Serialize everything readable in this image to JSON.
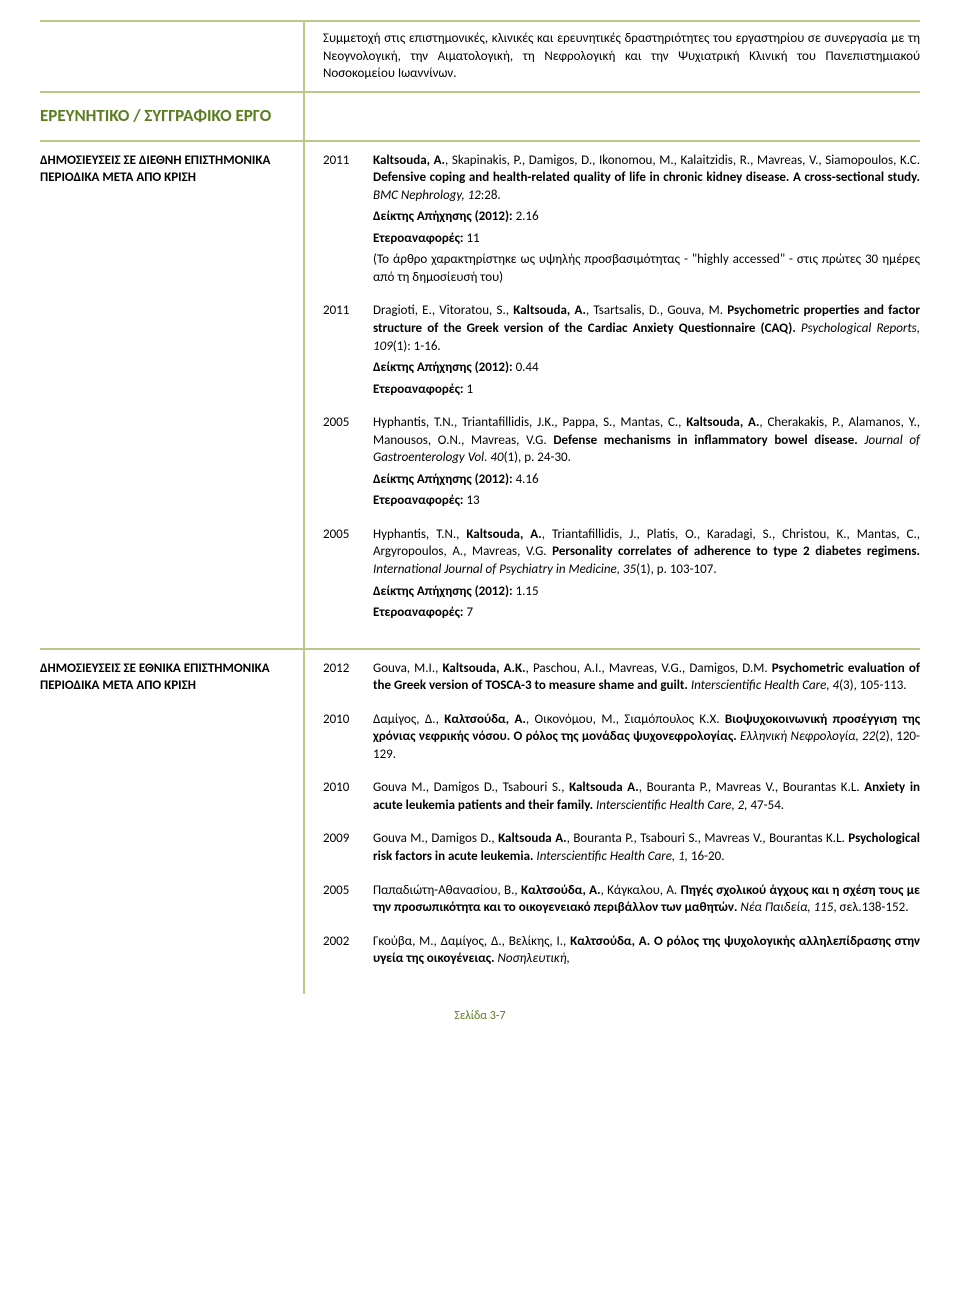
{
  "colors": {
    "accent_green": "#5b7c1f",
    "border_green": "#b8c98a",
    "text": "#000000",
    "background": "#ffffff"
  },
  "typography": {
    "body_font": "Calibri",
    "body_size_pt": 10,
    "section_title_size_pt": 13,
    "section_title_weight": "bold"
  },
  "intro_paragraph": "Συμμετοχή στις επιστημονικές, κλινικές και ερευνητικές δραστηριότητες του εργαστηρίου σε συνεργασία με τη Νεογνολογική, την Αιματολογική, τη Νεφρολογική και την Ψυχιατρική Κλινική του Πανεπιστημιακού Νοσοκομείου Ιωαννίνων.",
  "section_title": "ΕΡΕΥΝΗΤΙΚΟ / ΣΥΓΓΡΑΦΙΚΟ ΕΡΓΟ",
  "intl_pubs": {
    "heading": "ΔΗΜΟΣΙΕΥΣΕΙΣ ΣΕ ΔΙΕΘΝΗ ΕΠΙΣΤΗΜΟΝΙΚΑ ΠΕΡΙΟΔΙΚΑ ΜΕΤΑ ΑΠΟ ΚΡΙΣΗ",
    "entries": [
      {
        "year": "2011",
        "pre": "Kaltsouda, A.",
        "authors_rest": ", Skapinakis, P., Damigos, D., Ikonomou, M., Kalaitzidis, R., Mavreas, V., Siamopoulos, K.C. ",
        "title_bold": "Defensive coping and health-related quality of life in chronic kidney disease. A cross-sectional study. ",
        "journal_italic": "BMC Nephrology, 12",
        "tail": ":28.",
        "impact_label": "Δείκτης Απήχησης (2012): ",
        "impact_val": "2.16",
        "refs_label": "Ετεροαναφορές: ",
        "refs_val": "11",
        "note": "(Το άρθρο χαρακτηρίστηκε ως υψηλής προσβασιμότητας - \"highly accessed\" - στις πρώτες 30 ημέρες από τη δημοσίευσή του)"
      },
      {
        "year": "2011",
        "pre": "Dragioti, E., Vitoratou, S., ",
        "name_bold": "Kaltsouda, A.",
        "authors_rest": ", Tsartsalis, D., Gouva, M. ",
        "title_bold": "Psychometric properties and factor structure of the Greek version of the Cardiac Anxiety Questionnaire (CAQ). ",
        "journal_italic": "Psychological Reports, 109",
        "tail": "(1): 1-16.",
        "impact_label": "Δείκτης Απήχησης (2012): ",
        "impact_val": "0.44",
        "refs_label": "Ετεροαναφορές: ",
        "refs_val": "1"
      },
      {
        "year": "2005",
        "pre": "Hyphantis, T.N., Triantafillidis, J.K., Pappa, S., Mantas, C., ",
        "name_bold": "Kaltsouda, A.",
        "authors_rest": ", Cherakakis, P., Alamanos, Y., Manousos, O.N., Mavreas, V.G. ",
        "title_bold": "Defense mechanisms in inflammatory bowel disease. ",
        "journal_italic": "Journal of Gastroenterology Vol. 40",
        "tail": "(1), p. 24-30.",
        "impact_label": "Δείκτης Απήχησης (2012): ",
        "impact_val": "4.16",
        "refs_label": "Ετεροαναφορές: ",
        "refs_val": "13"
      },
      {
        "year": "2005",
        "pre": "Hyphantis, T.N., ",
        "name_bold": "Kaltsouda, A.",
        "authors_rest": ", Triantafillidis, J., Platis, O., Karadagi, S., Christou, K., Mantas, C., Argyropoulos, A., Mavreas, V.G. ",
        "title_bold": "Personality correlates of adherence to type 2 diabetes regimens. ",
        "journal_italic": "International Journal of Psychiatry in Medicine, 35",
        "tail": "(1), p. 103-107.",
        "impact_label": "Δείκτης Απήχησης (2012): ",
        "impact_val": "1.15",
        "refs_label": "Ετεροαναφορές: ",
        "refs_val": "7"
      }
    ]
  },
  "natl_pubs": {
    "heading": "ΔΗΜΟΣΙΕΥΣΕΙΣ ΣΕ ΕΘΝΙΚΑ ΕΠΙΣΤΗΜΟΝΙΚΑ ΠΕΡΙΟΔΙΚΑ ΜΕΤΑ ΑΠΟ ΚΡΙΣΗ",
    "entries": [
      {
        "year": "2012",
        "pre": "Gouva, M.I., ",
        "name_bold": "Kaltsouda, A.K.",
        "authors_rest": ", Paschou, A.I., Mavreas, V.G., Damigos, D.M. ",
        "title_bold": "Psychometric evaluation of the Greek version of TOSCA-3 to measure shame and guilt. ",
        "journal_italic": "Interscientific Health Care, 4",
        "tail": "(3), 105-113."
      },
      {
        "year": "2010",
        "pre": "Δαμίγος, Δ., ",
        "name_bold": "Καλτσούδα, Α.",
        "authors_rest": ", Οικονόμου, Μ., Σιαμόπουλος Κ.Χ. ",
        "title_bold": "Βιοψυχοκοινωνική προσέγγιση της χρόνιας νεφρικής νόσου. Ο ρόλος της μονάδας ψυχονεφρολογίας. ",
        "journal_italic": "Ελληνική Νεφρολογία, 22",
        "tail": "(2), 120-129."
      },
      {
        "year": "2010",
        "pre": "Gouva M., Damigos D., Tsabouri S., ",
        "name_bold": "Kaltsouda A.",
        "authors_rest": ", Bouranta P., Mavreas V., Bourantas K.L. ",
        "title_bold": "Anxiety in acute leukemia patients and their family. ",
        "journal_italic": "Interscientific Health Care, 2, ",
        "tail": "47-54."
      },
      {
        "year": "2009",
        "pre": "Gouva M., Damigos D., ",
        "name_bold": "Kaltsouda A.",
        "authors_rest": ", Bouranta P., Tsabouri S., Mavreas V., Bourantas K.L. ",
        "title_bold": "Psychological risk factors in acute leukemia. ",
        "journal_italic": "Interscientific Health Care, 1, ",
        "tail": "16-20."
      },
      {
        "year": "2005",
        "pre": "Παπαδιώτη-Αθανασίου, Β., ",
        "name_bold": "Καλτσούδα, Α.",
        "authors_rest": ", Κάγκαλου, Α. ",
        "title_bold": "Πηγές σχολικού άγχους και η σχέση τους με την προσωπικότητα και το οικογενειακό περιβάλλον των μαθητών. ",
        "journal_italic": "Νέα Παιδεία, 115",
        "tail": ", σελ.138-152."
      },
      {
        "year": "2002",
        "pre": "Γκούβα, Μ., Δαμίγος, Δ., Βελίκης, Ι., ",
        "name_bold": "Καλτσούδα, Α.",
        "authors_rest": " ",
        "title_bold": "Ο ρόλος της ψυχολογικής αλληλεπίδρασης στην υγεία της οικογένειας. ",
        "journal_italic": "Νοσηλευτική,",
        "tail": ""
      }
    ]
  },
  "footer": "Σελίδα 3-7"
}
